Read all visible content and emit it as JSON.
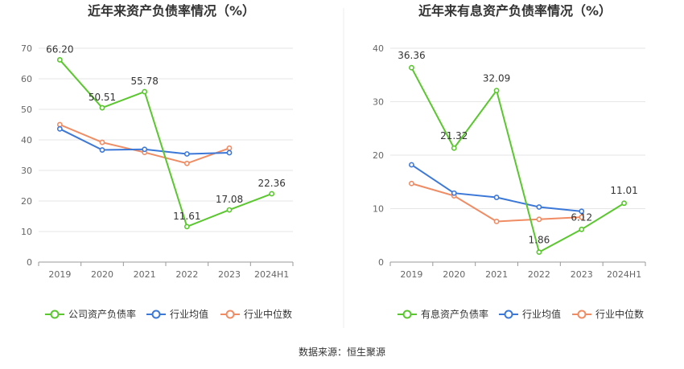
{
  "chart_data": [
    {
      "type": "line",
      "title": "近年来资产负债率情况（%）",
      "categories": [
        "2019",
        "2020",
        "2021",
        "2022",
        "2023",
        "2024H1"
      ],
      "ylim": [
        0,
        70
      ],
      "yticks": [
        0,
        10,
        20,
        30,
        40,
        50,
        60,
        70
      ],
      "grid": true,
      "legend_position": "bottom",
      "series": [
        {
          "name": "公司资产负债率",
          "color": "#5ac72e",
          "values": [
            66.2,
            50.51,
            55.78,
            11.61,
            17.08,
            22.36
          ],
          "labels": [
            "66.20",
            "50.51",
            "55.78",
            "11.61",
            "17.08",
            "22.36"
          ]
        },
        {
          "name": "行业均值",
          "color": "#3c78d8",
          "values": [
            43.6,
            36.7,
            36.9,
            35.4,
            35.8,
            null
          ]
        },
        {
          "name": "行业中位数",
          "color": "#f08c64",
          "values": [
            45.0,
            39.2,
            35.9,
            32.3,
            37.3,
            null
          ]
        }
      ]
    },
    {
      "type": "line",
      "title": "近年来有息资产负债率情况（%）",
      "categories": [
        "2019",
        "2020",
        "2021",
        "2022",
        "2023",
        "2024H1"
      ],
      "ylim": [
        0,
        40
      ],
      "yticks": [
        0,
        10,
        20,
        30,
        40
      ],
      "grid": true,
      "legend_position": "bottom",
      "series": [
        {
          "name": "有息资产负债率",
          "color": "#5ac72e",
          "values": [
            36.36,
            21.32,
            32.09,
            1.86,
            6.12,
            11.01
          ],
          "labels": [
            "36.36",
            "21.32",
            "32.09",
            "1.86",
            "6.12",
            "11.01"
          ]
        },
        {
          "name": "行业均值",
          "color": "#3c78d8",
          "values": [
            18.2,
            12.9,
            12.1,
            10.3,
            9.5,
            null
          ]
        },
        {
          "name": "行业中位数",
          "color": "#f08c64",
          "values": [
            14.7,
            12.4,
            7.6,
            8.0,
            8.4,
            null
          ]
        }
      ]
    }
  ],
  "footer": {
    "source": "数据来源：恒生聚源"
  }
}
